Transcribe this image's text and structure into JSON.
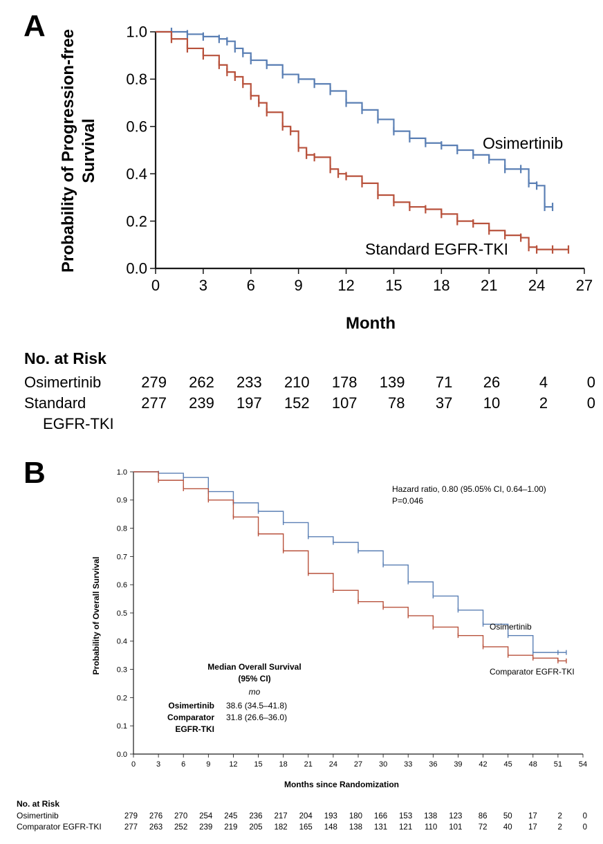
{
  "colors": {
    "osimertinib": "#5a7fb4",
    "comparator": "#b8523c",
    "axis": "#1a1a1a"
  },
  "chart_data": [
    {
      "panel_label": "A",
      "type": "line",
      "ylabel_lines": [
        "Probability of Progression-free",
        "Survival"
      ],
      "xlabel": "Month",
      "xlim": [
        0,
        27
      ],
      "ylim": [
        0,
        1.0
      ],
      "xticks": [
        "0",
        "3",
        "6",
        "9",
        "12",
        "15",
        "18",
        "21",
        "24",
        "27"
      ],
      "yticks": [
        "0.0",
        "0.2",
        "0.4",
        "0.6",
        "0.8",
        "1.0"
      ],
      "series": [
        {
          "name": "Osimertinib",
          "color": "#5a7fb4",
          "x": [
            0,
            1,
            2,
            3,
            4,
            4.5,
            5,
            5.5,
            6,
            7,
            8,
            9,
            10,
            11,
            12,
            13,
            14,
            15,
            16,
            17,
            18,
            19,
            20,
            21,
            22,
            23,
            23.5,
            24,
            24.5,
            25
          ],
          "y": [
            1.0,
            1.0,
            0.99,
            0.98,
            0.97,
            0.96,
            0.93,
            0.91,
            0.88,
            0.86,
            0.82,
            0.8,
            0.78,
            0.75,
            0.7,
            0.67,
            0.63,
            0.58,
            0.55,
            0.53,
            0.52,
            0.5,
            0.48,
            0.46,
            0.42,
            0.42,
            0.36,
            0.35,
            0.26,
            0.26
          ]
        },
        {
          "name": "Standard EGFR-TKI",
          "color": "#b8523c",
          "x": [
            0,
            1,
            2,
            3,
            4,
            4.5,
            5,
            5.5,
            6,
            6.5,
            7,
            8,
            8.5,
            9,
            9.5,
            10,
            11,
            11.5,
            12,
            13,
            14,
            15,
            16,
            17,
            18,
            19,
            20,
            21,
            22,
            23,
            23.5,
            24,
            25,
            26
          ],
          "y": [
            1.0,
            0.97,
            0.93,
            0.9,
            0.86,
            0.83,
            0.81,
            0.78,
            0.73,
            0.7,
            0.66,
            0.6,
            0.58,
            0.51,
            0.48,
            0.47,
            0.42,
            0.4,
            0.39,
            0.36,
            0.31,
            0.28,
            0.26,
            0.25,
            0.23,
            0.2,
            0.19,
            0.16,
            0.14,
            0.13,
            0.09,
            0.08,
            0.08,
            0.08
          ]
        }
      ],
      "risk_title": "No. at Risk",
      "risk_rows": [
        {
          "label": "Osimertinib",
          "values": [
            "279",
            "262",
            "233",
            "210",
            "178",
            "139",
            "71",
            "26",
            "4",
            "0"
          ]
        },
        {
          "label": "Standard",
          "label2": "EGFR-TKI",
          "values": [
            "277",
            "239",
            "197",
            "152",
            "107",
            "78",
            "37",
            "10",
            "2",
            "0"
          ]
        }
      ]
    },
    {
      "panel_label": "B",
      "type": "line",
      "ylabel": "Probability of Overall Survival",
      "xlabel": "Months since Randomization",
      "xlim": [
        0,
        54
      ],
      "ylim": [
        0,
        1.0
      ],
      "xticks": [
        "0",
        "3",
        "6",
        "9",
        "12",
        "15",
        "18",
        "21",
        "24",
        "27",
        "30",
        "33",
        "36",
        "39",
        "42",
        "45",
        "48",
        "51",
        "54"
      ],
      "yticks": [
        "0.0",
        "0.1",
        "0.2",
        "0.3",
        "0.4",
        "0.5",
        "0.6",
        "0.7",
        "0.8",
        "0.9",
        "1.0"
      ],
      "series": [
        {
          "name": "Osimertinib",
          "color": "#5a7fb4",
          "x": [
            0,
            3,
            6,
            9,
            12,
            15,
            18,
            21,
            24,
            27,
            30,
            33,
            36,
            39,
            42,
            45,
            48,
            51,
            52
          ],
          "y": [
            1.0,
            0.995,
            0.98,
            0.93,
            0.89,
            0.86,
            0.82,
            0.77,
            0.75,
            0.72,
            0.67,
            0.61,
            0.56,
            0.51,
            0.46,
            0.42,
            0.36,
            0.36,
            0.36
          ]
        },
        {
          "name": "Comparator EGFR-TKI",
          "color": "#b8523c",
          "x": [
            0,
            3,
            6,
            9,
            12,
            15,
            18,
            21,
            24,
            27,
            30,
            33,
            36,
            39,
            42,
            45,
            48,
            51,
            52
          ],
          "y": [
            1.0,
            0.97,
            0.94,
            0.9,
            0.84,
            0.78,
            0.72,
            0.64,
            0.58,
            0.54,
            0.52,
            0.49,
            0.45,
            0.42,
            0.38,
            0.35,
            0.34,
            0.33,
            0.33
          ]
        }
      ],
      "hazard_line1": "Hazard ratio, 0.80 (95.05% CI, 0.64–1.00)",
      "hazard_line2": "P=0.046",
      "median_title1": "Median Overall Survival",
      "median_title2": "(95% CI)",
      "median_unit": "mo",
      "median_rows": [
        {
          "label": "Osimertinib",
          "value": "38.6 (34.5–41.8)"
        },
        {
          "label": "Comparator",
          "label2": "EGFR-TKI",
          "value": "31.8 (26.6–36.0)"
        }
      ],
      "risk_title": "No. at Risk",
      "risk_rows": [
        {
          "label": "Osimertinib",
          "values": [
            "279",
            "276",
            "270",
            "254",
            "245",
            "236",
            "217",
            "204",
            "193",
            "180",
            "166",
            "153",
            "138",
            "123",
            "86",
            "50",
            "17",
            "2",
            "0"
          ]
        },
        {
          "label": "Comparator EGFR-TKI",
          "values": [
            "277",
            "263",
            "252",
            "239",
            "219",
            "205",
            "182",
            "165",
            "148",
            "138",
            "131",
            "121",
            "110",
            "101",
            "72",
            "40",
            "17",
            "2",
            "0"
          ]
        }
      ]
    }
  ]
}
